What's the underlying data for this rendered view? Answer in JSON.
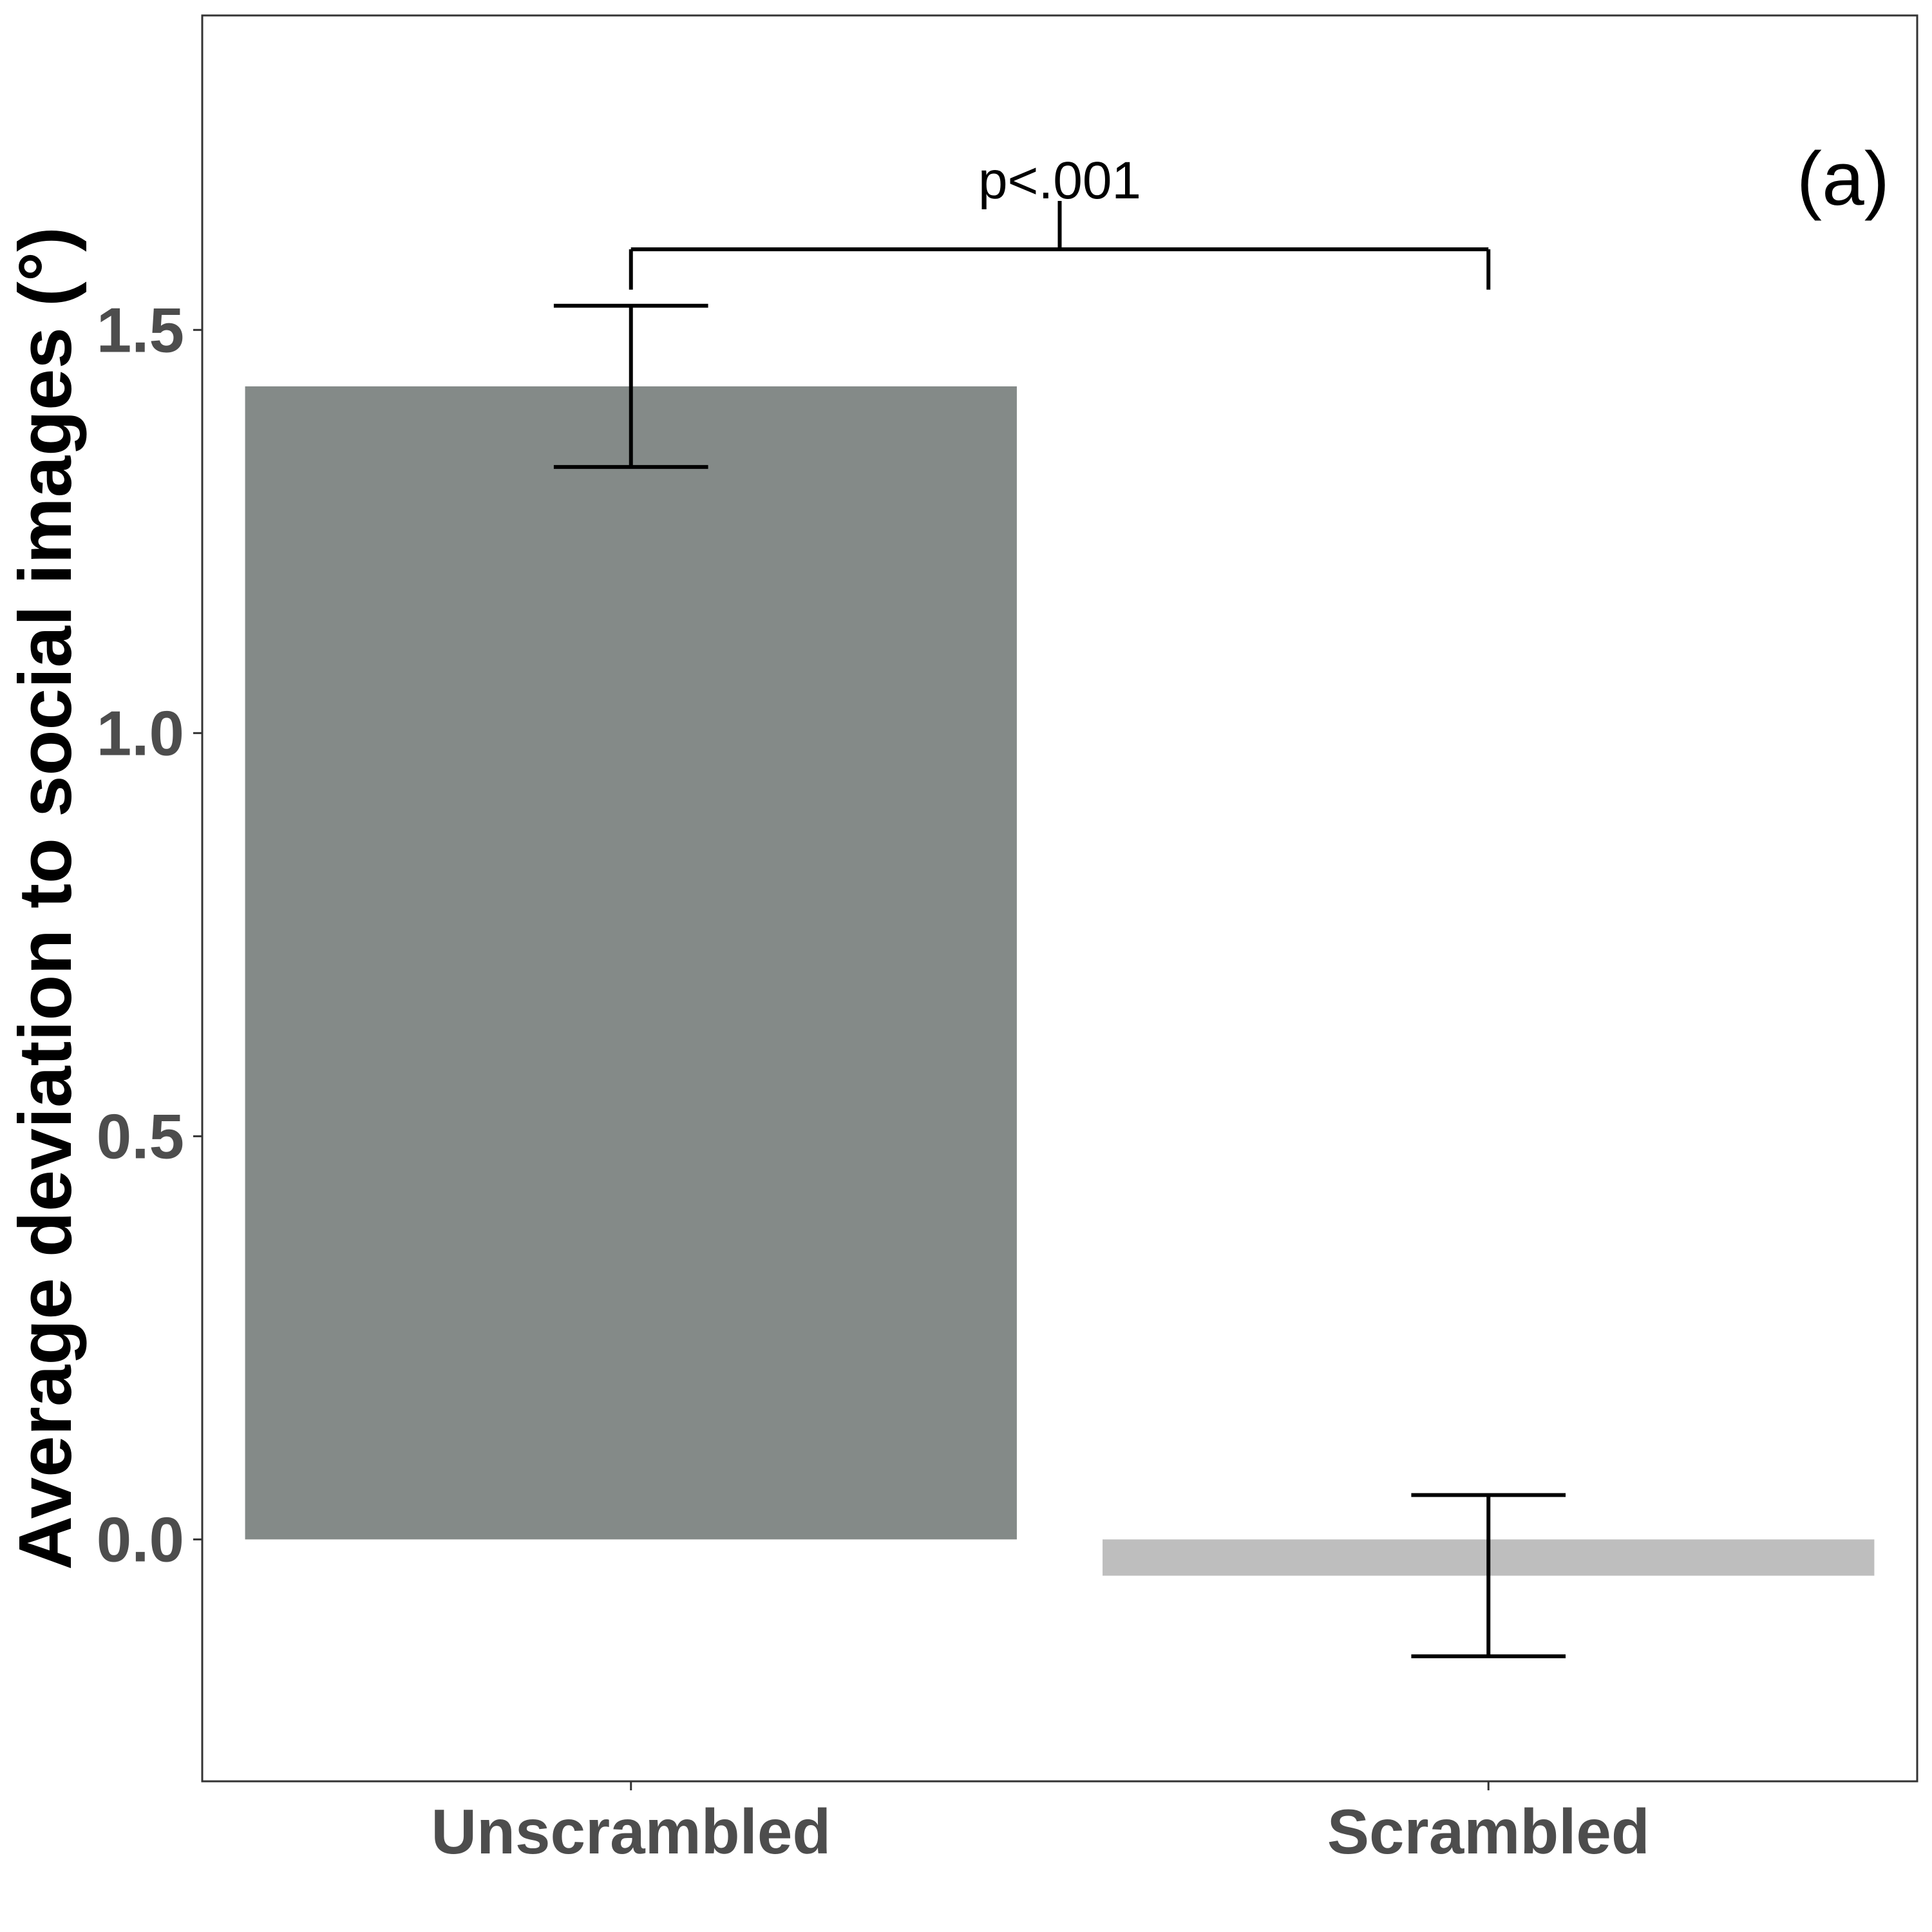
{
  "chart_data": {
    "type": "bar",
    "title": "",
    "xlabel": "",
    "ylabel": "Average deviation to social images (°)",
    "categories": [
      "Unscrambled",
      "Scrambled"
    ],
    "values": [
      1.43,
      -0.045
    ],
    "error_bars": [
      {
        "low": 1.33,
        "high": 1.53
      },
      {
        "low": -0.145,
        "high": 0.055
      }
    ],
    "colors": [
      "#848a88",
      "#bebebe"
    ],
    "ylim": [
      -0.3,
      1.89
    ],
    "yticks": [
      "0.0",
      "0.5",
      "1.0",
      "1.5"
    ],
    "ytick_values": [
      0.0,
      0.5,
      1.0,
      1.5
    ],
    "grid": false,
    "legend": "none",
    "annotations": {
      "significance": "p<.001",
      "panel_label": "(a)"
    }
  }
}
